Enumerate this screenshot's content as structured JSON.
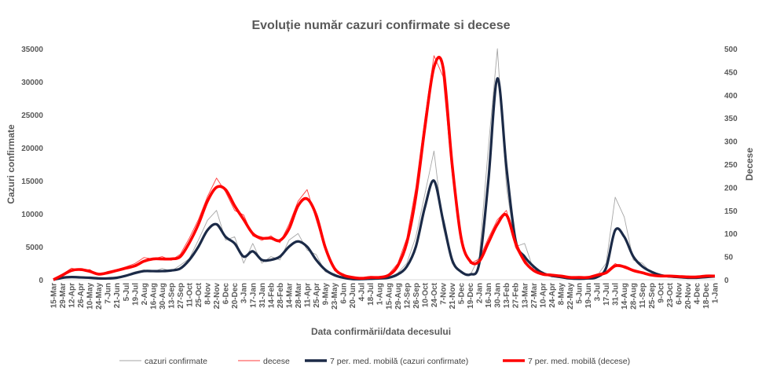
{
  "chart_data": {
    "type": "line",
    "title": "Evoluție număr cazuri confirmate si decese",
    "xlabel": "Data confirmării/data decesului",
    "ylabel": "Cazuri confirmate",
    "y2label": "Decese",
    "ylim": [
      0,
      35000
    ],
    "y2lim": [
      0,
      500
    ],
    "yticks": [
      0,
      5000,
      10000,
      15000,
      20000,
      25000,
      30000,
      35000
    ],
    "y2ticks": [
      0,
      50,
      100,
      150,
      200,
      250,
      300,
      350,
      400,
      450,
      500
    ],
    "grid": false,
    "legend_position": "bottom",
    "colors": {
      "raw_cases": "#a6a6a6",
      "raw_deaths": "#ff3b3b",
      "ma_cases": "#1b2a47",
      "ma_deaths": "#ff0000"
    },
    "categories": [
      "15-Mar",
      "29-Mar",
      "12-Apr",
      "26-Apr",
      "10-May",
      "24-May",
      "7-Jun",
      "21-Jun",
      "5-Jul",
      "19-Jul",
      "2-Aug",
      "16-Aug",
      "30-Aug",
      "13-Sep",
      "27-Sep",
      "11-Oct",
      "25-Oct",
      "8-Nov",
      "22-Nov",
      "6-Dec",
      "20-Dec",
      "3-Jan",
      "17-Jan",
      "31-Jan",
      "14-Feb",
      "28-Feb",
      "14-Mar",
      "28-Mar",
      "11-Apr",
      "25-Apr",
      "9-May",
      "23-May",
      "6-Jun",
      "20-Jun",
      "4-Jul",
      "18-Jul",
      "1-Aug",
      "15-Aug",
      "29-Aug",
      "12-Sep",
      "26-Sep",
      "10-Oct",
      "24-Oct",
      "7-Nov",
      "21-Nov",
      "5-Dec",
      "19-Dec",
      "2-Jan",
      "16-Jan",
      "30-Jan",
      "13-Feb",
      "27-Feb",
      "13-Mar",
      "27-Mar",
      "10-Apr",
      "24-Apr",
      "8-May",
      "22-May",
      "5-Jun",
      "19-Jun",
      "3-Jul",
      "17-Jul",
      "31-Jul",
      "14-Aug",
      "28-Aug",
      "11-Sep",
      "25-Sep",
      "9-Oct",
      "23-Oct",
      "6-Nov",
      "20-Nov",
      "4-Dec",
      "18-Dec",
      "1-Jan"
    ],
    "series": [
      {
        "name": "cazuri confirmate",
        "axis": "left",
        "values": [
          0,
          350,
          450,
          300,
          350,
          150,
          250,
          350,
          700,
          1200,
          1500,
          1200,
          1700,
          1300,
          2200,
          3200,
          6000,
          9000,
          10500,
          6000,
          6500,
          2500,
          5500,
          2500,
          3500,
          3000,
          6000,
          7000,
          4500,
          3800,
          1200,
          900,
          200,
          150,
          100,
          200,
          250,
          350,
          1000,
          2500,
          6500,
          13000,
          19500,
          8000,
          2500,
          1000,
          700,
          3500,
          20000,
          35000,
          14000,
          5000,
          5500,
          1500,
          1200,
          400,
          500,
          150,
          100,
          250,
          600,
          2500,
          12500,
          9500,
          3000,
          2500,
          1000,
          600,
          500,
          300,
          300,
          250,
          500,
          600
        ]
      },
      {
        "name": "decese",
        "axis": "right",
        "values": [
          0,
          12,
          25,
          20,
          22,
          10,
          18,
          22,
          28,
          35,
          48,
          45,
          50,
          42,
          55,
          90,
          130,
          180,
          220,
          190,
          150,
          140,
          95,
          85,
          95,
          80,
          120,
          170,
          195,
          130,
          65,
          20,
          8,
          5,
          2,
          6,
          4,
          12,
          35,
          90,
          200,
          350,
          485,
          440,
          230,
          80,
          35,
          45,
          90,
          130,
          150,
          70,
          35,
          18,
          10,
          12,
          6,
          5,
          4,
          6,
          12,
          18,
          35,
          25,
          18,
          14,
          9,
          8,
          7,
          6,
          5,
          7,
          9,
          8
        ]
      },
      {
        "name": "7 per. med. mobilă (cazuri confirmate)",
        "axis": "left",
        "values": [
          0,
          300,
          400,
          350,
          300,
          200,
          200,
          300,
          600,
          1000,
          1300,
          1300,
          1300,
          1400,
          1700,
          3000,
          5000,
          7500,
          8400,
          6500,
          5500,
          3500,
          4300,
          3000,
          3000,
          3500,
          5000,
          5800,
          5000,
          3000,
          1500,
          700,
          300,
          100,
          100,
          150,
          200,
          300,
          800,
          2000,
          5000,
          11000,
          15000,
          9000,
          3000,
          1200,
          800,
          2500,
          15000,
          30500,
          17000,
          6000,
          3500,
          2000,
          1000,
          600,
          400,
          200,
          150,
          200,
          400,
          1800,
          7500,
          6500,
          3500,
          2000,
          1200,
          700,
          500,
          400,
          300,
          300,
          400,
          500
        ]
      },
      {
        "name": "7 per. med. mobilă (decese)",
        "axis": "right",
        "values": [
          0,
          10,
          20,
          22,
          18,
          12,
          15,
          20,
          25,
          30,
          40,
          45,
          45,
          45,
          50,
          80,
          120,
          170,
          200,
          195,
          160,
          130,
          100,
          90,
          90,
          85,
          110,
          160,
          175,
          140,
          70,
          25,
          10,
          5,
          3,
          5,
          5,
          10,
          30,
          80,
          180,
          330,
          460,
          460,
          250,
          90,
          40,
          40,
          80,
          120,
          140,
          80,
          40,
          20,
          12,
          10,
          8,
          5,
          5,
          5,
          10,
          15,
          30,
          28,
          20,
          15,
          10,
          8,
          8,
          7,
          6,
          6,
          8,
          8
        ]
      }
    ]
  }
}
